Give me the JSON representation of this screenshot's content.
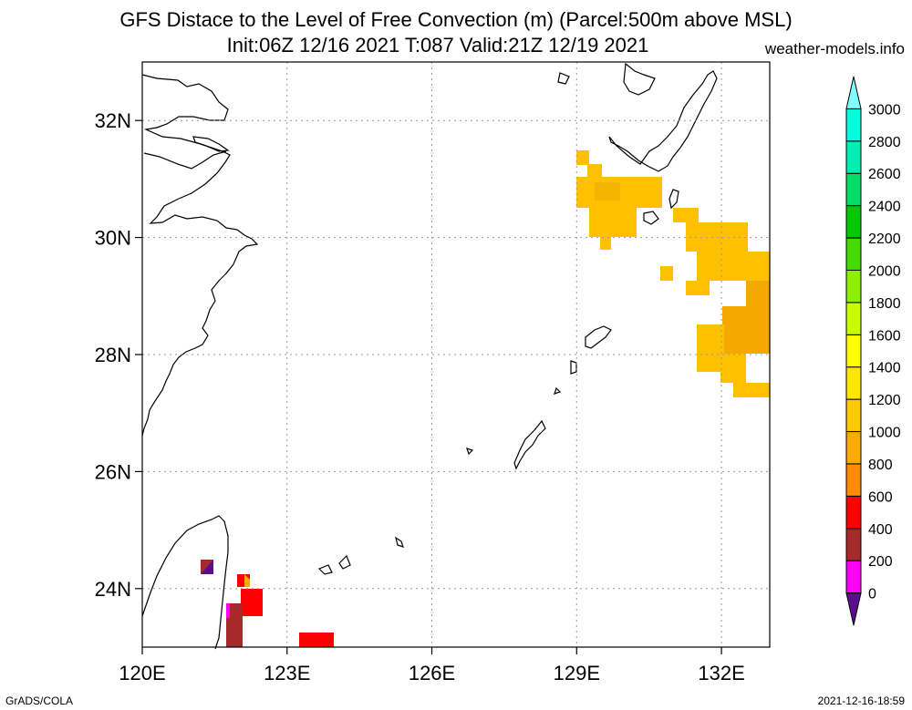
{
  "title_line1": "GFS Distace to the Level of Free Convection (m) (Parcel:500m above MSL)",
  "title_line2": "Init:06Z 12/16 2021 T:087 Valid:21Z 12/19 2021",
  "site": "weather-models.info",
  "footer_left": "GrADS/COLA",
  "footer_right": "2021-12-16-18:59",
  "map": {
    "lon_range": [
      120,
      133
    ],
    "lat_range": [
      23,
      33
    ],
    "lon_ticks": [
      {
        "value": 120,
        "label": "120E"
      },
      {
        "value": 123,
        "label": "123E"
      },
      {
        "value": 126,
        "label": "126E"
      },
      {
        "value": 129,
        "label": "129E"
      },
      {
        "value": 132,
        "label": "132E"
      }
    ],
    "lat_ticks": [
      {
        "value": 24,
        "label": "24N"
      },
      {
        "value": 26,
        "label": "26N"
      },
      {
        "value": 28,
        "label": "28N"
      },
      {
        "value": 30,
        "label": "30N"
      },
      {
        "value": 32,
        "label": "32N"
      }
    ],
    "grid": "dotted"
  },
  "colorbar": {
    "labels": [
      "0",
      "200",
      "400",
      "600",
      "800",
      "1000",
      "1200",
      "1400",
      "1600",
      "1800",
      "2000",
      "2200",
      "2400",
      "2600",
      "2800",
      "3000"
    ],
    "colors": [
      "#5a0d8c",
      "#ff00ff",
      "#a52a2a",
      "#ff0000",
      "#ff8c00",
      "#ffaa00",
      "#ffc800",
      "#ffe600",
      "#ffff00",
      "#c8ff00",
      "#8cf000",
      "#46dc00",
      "#00c800",
      "#00dc64",
      "#00f0b4",
      "#00ffdc",
      "#80ffff"
    ]
  }
}
